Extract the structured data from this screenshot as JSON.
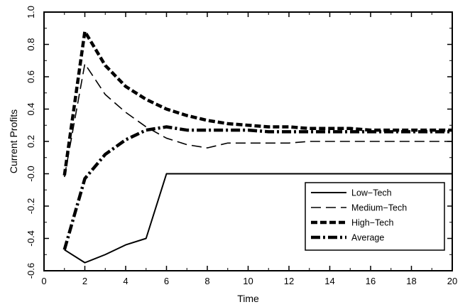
{
  "chart_data": {
    "type": "line",
    "title": "",
    "xlabel": "Time",
    "ylabel": "Current Profits",
    "xlim": [
      0,
      20
    ],
    "ylim": [
      -0.6,
      1.0
    ],
    "x_ticks": [
      "0",
      "2",
      "4",
      "6",
      "8",
      "10",
      "12",
      "14",
      "16",
      "18",
      "20"
    ],
    "y_ticks": [
      "-0.6",
      "-0.4",
      "-0.2",
      "-0.0",
      "0.2",
      "0.4",
      "0.6",
      "0.8",
      "1.0"
    ],
    "grid": false,
    "legend_position": "bottom-right",
    "series": [
      {
        "name": "Low−Tech",
        "style": "solid",
        "x": [
          1,
          2,
          3,
          4,
          5,
          6,
          7,
          8,
          9,
          10,
          11,
          12,
          13,
          14,
          15,
          16,
          17,
          18,
          19,
          20
        ],
        "y": [
          -0.47,
          -0.55,
          -0.5,
          -0.44,
          -0.4,
          0.0,
          0.0,
          0.0,
          0.0,
          0.0,
          0.0,
          0.0,
          0.0,
          0.0,
          0.0,
          0.0,
          0.0,
          0.0,
          0.0,
          0.0
        ]
      },
      {
        "name": "Medium−Tech",
        "style": "dashed",
        "x": [
          1,
          2,
          3,
          4,
          5,
          6,
          7,
          8,
          9,
          10,
          11,
          12,
          13,
          14,
          15,
          16,
          17,
          18,
          19,
          20
        ],
        "y": [
          -0.02,
          0.68,
          0.49,
          0.38,
          0.29,
          0.22,
          0.18,
          0.16,
          0.19,
          0.19,
          0.19,
          0.19,
          0.2,
          0.2,
          0.2,
          0.2,
          0.2,
          0.2,
          0.2,
          0.2
        ]
      },
      {
        "name": "High−Tech",
        "style": "thick-dashed",
        "x": [
          1,
          2,
          3,
          4,
          5,
          6,
          7,
          8,
          9,
          10,
          11,
          12,
          13,
          14,
          15,
          16,
          17,
          18,
          19,
          20
        ],
        "y": [
          -0.01,
          0.88,
          0.67,
          0.54,
          0.46,
          0.4,
          0.36,
          0.33,
          0.31,
          0.3,
          0.29,
          0.29,
          0.28,
          0.28,
          0.28,
          0.27,
          0.27,
          0.27,
          0.27,
          0.27
        ]
      },
      {
        "name": "Average",
        "style": "dash-dot",
        "x": [
          1,
          2,
          3,
          4,
          5,
          6,
          7,
          8,
          9,
          10,
          11,
          12,
          13,
          14,
          15,
          16,
          17,
          18,
          19,
          20
        ],
        "y": [
          -0.47,
          -0.03,
          0.12,
          0.21,
          0.27,
          0.29,
          0.27,
          0.27,
          0.27,
          0.27,
          0.26,
          0.26,
          0.26,
          0.26,
          0.26,
          0.26,
          0.26,
          0.26,
          0.26,
          0.26
        ]
      }
    ]
  }
}
